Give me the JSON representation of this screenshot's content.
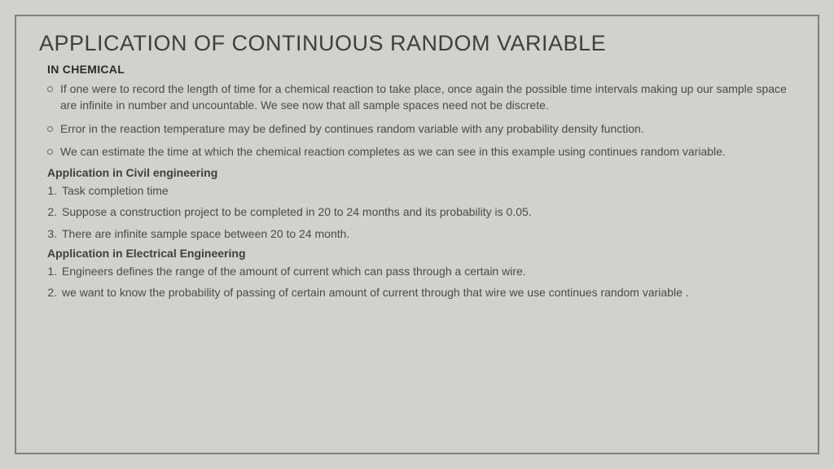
{
  "title": "APPLICATION OF CONTINUOUS RANDOM VARIABLE",
  "sections": {
    "chemical": {
      "heading": "IN CHEMICAL",
      "bullets": [
        "If one were to record the length of time for a chemical reaction to take place, once again the possible time intervals making up our sample space are infinite in number and uncountable. We see now that all sample spaces need not be discrete.",
        "Error in the reaction temperature may be defined by continues random variable with any probability density function.",
        "We can estimate the time at which the chemical reaction completes as we can see in this example using continues random variable."
      ]
    },
    "civil": {
      "heading": "Application in Civil engineering",
      "items": [
        "Task completion time",
        "Suppose a construction project to be completed in 20 to 24 months and its probability is 0.05.",
        "There are infinite sample space between 20 to 24 month."
      ]
    },
    "electrical": {
      "heading": "Application in Electrical Engineering",
      "items": [
        " Engineers defines the range of the amount of current which can pass through a certain wire.",
        "we want to know the probability of passing of certain amount of current through that wire we use continues random variable ."
      ]
    }
  },
  "style": {
    "background_color": "#d1d1cd",
    "border_color": "#808078",
    "title_color": "#3f3f3b",
    "body_text_color": "#4a4a46",
    "title_fontsize_pt": 20,
    "body_fontsize_pt": 10.5
  }
}
